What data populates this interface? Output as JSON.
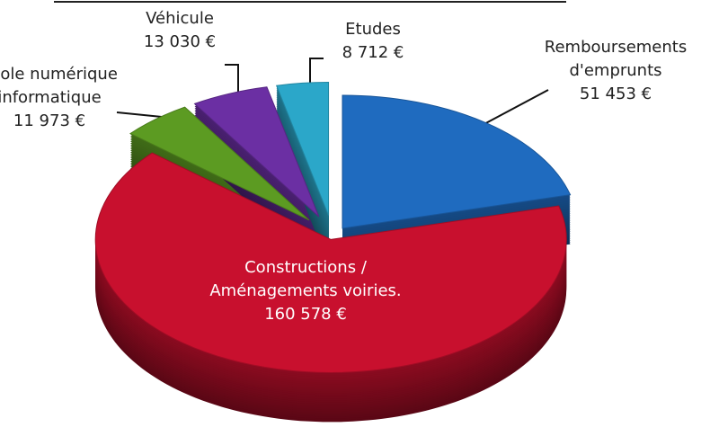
{
  "chart_data": {
    "type": "pie",
    "categories": [
      "Remboursements d'emprunts",
      "Constructions / Aménagements voiries.",
      "Ecole numérique informatique",
      "Véhicule",
      "Etudes"
    ],
    "values": [
      51453,
      160578,
      11973,
      13030,
      8712
    ],
    "value_labels": [
      "51 453 €",
      "160 578 €",
      "11 973 €",
      "13 030 €",
      "8 712 €"
    ],
    "colors": [
      "#1f6bbf",
      "#c8102e",
      "#5c9b22",
      "#6b2fa3",
      "#2ba7c9"
    ]
  }
}
